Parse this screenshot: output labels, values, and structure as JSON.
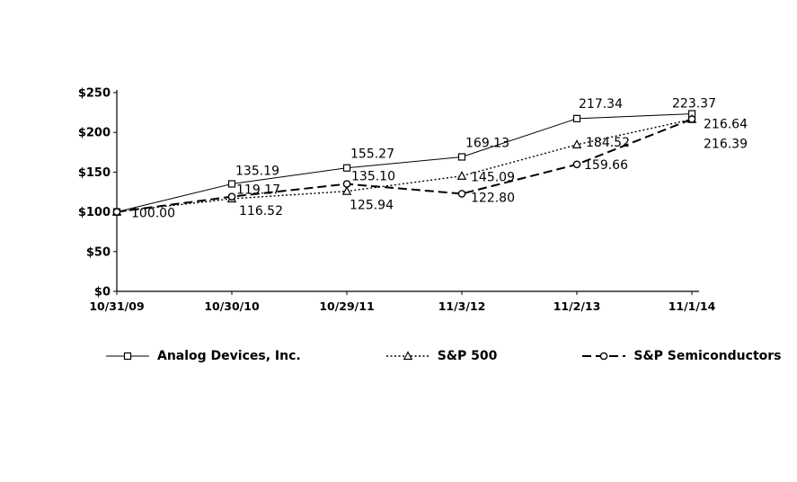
{
  "chart_data": {
    "type": "line",
    "title": "",
    "xlabel": "",
    "ylabel": "",
    "x": [
      "10/31/09",
      "10/30/10",
      "10/29/11",
      "11/3/12",
      "11/2/13",
      "11/1/14"
    ],
    "y_ticks": [
      "$0",
      "$50",
      "$100",
      "$150",
      "$200",
      "$250"
    ],
    "ylim": [
      0,
      250
    ],
    "grid": false,
    "legend_position": "bottom",
    "point_labels_visible": true,
    "axis_color": "#000000",
    "series": [
      {
        "name": "Analog Devices, Inc.",
        "marker": "square",
        "line": "solid",
        "color": "#000000",
        "values": [
          100.0,
          135.19,
          155.27,
          169.13,
          217.34,
          223.37
        ]
      },
      {
        "name": "S&P 500",
        "marker": "triangle",
        "line": "dotted",
        "color": "#000000",
        "values": [
          100.0,
          116.52,
          125.94,
          145.09,
          184.52,
          216.39
        ]
      },
      {
        "name": "S&P Semiconductors",
        "marker": "circle",
        "line": "dashed",
        "color": "#000000",
        "values": [
          100.0,
          119.17,
          135.1,
          122.8,
          159.66,
          216.64
        ]
      }
    ]
  }
}
